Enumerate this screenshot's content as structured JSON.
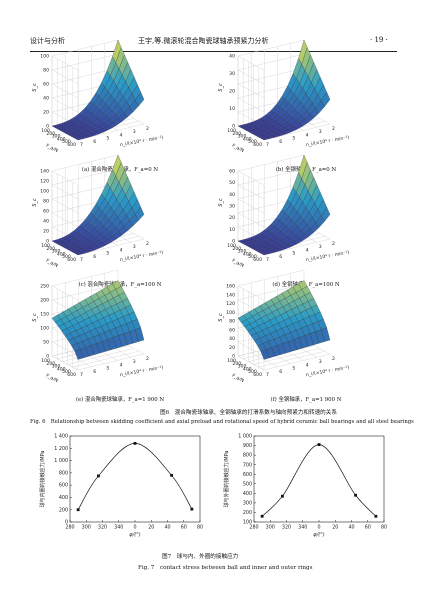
{
  "header": {
    "left": "设计与分析",
    "center": "王宇,等.微滚轮混合陶瓷球轴承预紧力分析",
    "right": "· 19 ·"
  },
  "colors": {
    "surfaceLow": "#3b3f9a",
    "surfaceMid": "#2a9cc8",
    "surfaceHigh": "#f0e040"
  },
  "surfaces": [
    {
      "zlabel": "S_c",
      "xlabel": "n_i/(×10⁴ r · min⁻¹)",
      "ylabel": "F_a/N",
      "zticks": [
        "100",
        "80",
        "60",
        "40",
        "20",
        "0"
      ],
      "xticks": [
        "2",
        "3",
        "4",
        "5",
        "6",
        "7"
      ],
      "yticks": [
        "600",
        "500",
        "400",
        "300",
        "200",
        "100"
      ],
      "caption": "(a) 混合陶瓷球轴承，F_a=0 N"
    },
    {
      "zlabel": "S_c",
      "xlabel": "n_i/(×10⁴ r · min⁻¹)",
      "ylabel": "F_a/N",
      "zticks": [
        "40",
        "30",
        "20",
        "10",
        "0"
      ],
      "xticks": [
        "2",
        "3",
        "4",
        "5",
        "6",
        "7"
      ],
      "yticks": [
        "600",
        "500",
        "400",
        "300",
        "200",
        "100"
      ],
      "caption": "(b) 全钢轴承，F_a=0 N"
    },
    {
      "zlabel": "S_c",
      "xlabel": "n_i/(×10⁴ r · min⁻¹)",
      "ylabel": "F_a/N",
      "zticks": [
        "140",
        "120",
        "100",
        "80",
        "60",
        "40",
        "20",
        "0"
      ],
      "xticks": [
        "2",
        "3",
        "4",
        "5",
        "6",
        "7"
      ],
      "yticks": [
        "600",
        "500",
        "400",
        "300",
        "200",
        "100"
      ],
      "caption": "(c) 混合陶瓷球轴承，F_a=100 N"
    },
    {
      "zlabel": "S_c",
      "xlabel": "n_i/(×10⁴ r · min⁻¹)",
      "ylabel": "F_a/N",
      "zticks": [
        "60",
        "50",
        "40",
        "30",
        "20",
        "10",
        "0"
      ],
      "xticks": [
        "2",
        "3",
        "4",
        "5",
        "6",
        "7"
      ],
      "yticks": [
        "600",
        "500",
        "400",
        "300",
        "200",
        "100"
      ],
      "caption": "(d) 全钢轴承，F_a=100 N"
    },
    {
      "zlabel": "S_c",
      "xlabel": "n_i/(×10⁴ r · min⁻¹)",
      "ylabel": "F_a/N",
      "zticks": [
        "250",
        "200",
        "150",
        "100",
        "50",
        "0"
      ],
      "xticks": [
        "2",
        "3",
        "4",
        "5",
        "6",
        "7"
      ],
      "yticks": [
        "600",
        "500",
        "400",
        "300",
        "200",
        "100"
      ],
      "caption": "(e) 混合陶瓷球轴承，F_a=1 900 N"
    },
    {
      "zlabel": "S_c",
      "xlabel": "n_i/(×10⁴ r · min⁻¹)",
      "ylabel": "F_a/N",
      "zticks": [
        "160",
        "140",
        "120",
        "100",
        "80",
        "60",
        "40",
        "20",
        "0"
      ],
      "xticks": [
        "2",
        "3",
        "4",
        "5",
        "6",
        "7"
      ],
      "yticks": [
        "600",
        "500",
        "400",
        "300",
        "200",
        "100"
      ],
      "caption": "(f) 全钢轴承，F_a=1 900 N"
    }
  ],
  "fig6": {
    "cn": "图6　混合陶瓷球轴承、全钢轴承的打滑系数与轴向预紧力和转速的关系",
    "en": "Fig. 6　Relationship between skidding coefficient and axial preload and rotational speed of hybrid ceramic ball bearings and all steel bearings"
  },
  "chart_data": [
    {
      "type": "line",
      "ylabel": "球与内圈的接触应力/MPa",
      "xlabel": "φ/(°)",
      "xticks": [
        "280",
        "300",
        "320",
        "340",
        "0",
        "20",
        "40",
        "60",
        "80"
      ],
      "yticks": [
        "1 400",
        "1 200",
        "1 000",
        "800",
        "600",
        "400",
        "200",
        "0"
      ],
      "ylim": [
        0,
        1400
      ],
      "x": [
        290,
        315,
        0,
        45,
        70
      ],
      "values": [
        200,
        750,
        1280,
        760,
        210
      ]
    },
    {
      "type": "line",
      "ylabel": "球与外圈的接触应力/MPa",
      "xlabel": "φ/(°)",
      "xticks": [
        "280",
        "300",
        "320",
        "340",
        "0",
        "20",
        "40",
        "60",
        "80"
      ],
      "yticks": [
        "1 000",
        "900",
        "800",
        "700",
        "600",
        "500",
        "400",
        "300",
        "200",
        "100"
      ],
      "ylim": [
        100,
        1000
      ],
      "x": [
        290,
        315,
        0,
        45,
        70
      ],
      "values": [
        160,
        370,
        910,
        380,
        160
      ]
    }
  ],
  "fig7": {
    "cn": "图7　球与内、外圈的接触应力",
    "en": "Fig. 7　contact stress between ball and inner and outer rings"
  }
}
